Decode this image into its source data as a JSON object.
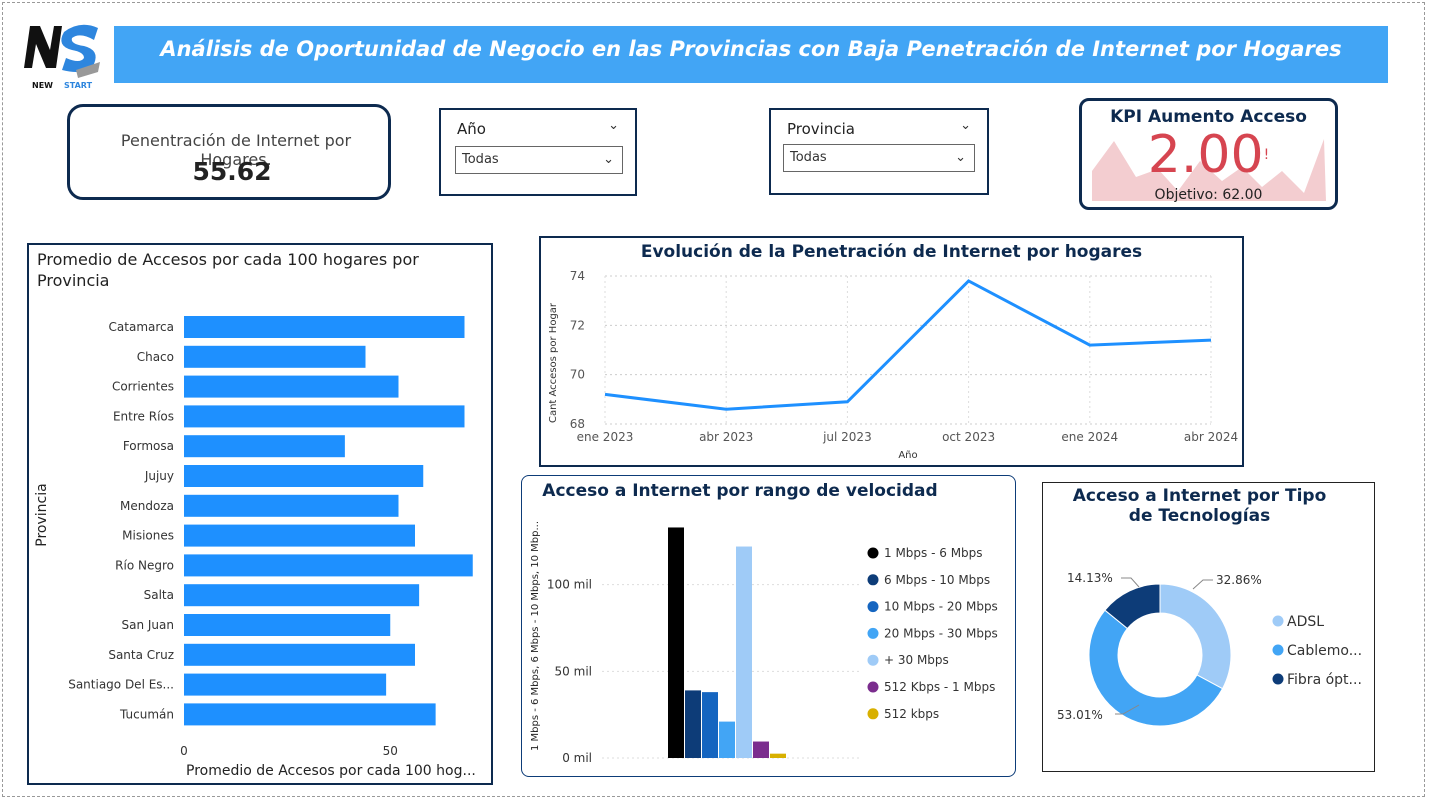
{
  "header": {
    "title": "Análisis de Oportunidad de Negocio en las Provincias con Baja Penetración de Internet por Hogares",
    "logo_text": "NS",
    "logo_sub_a": "NEW",
    "logo_sub_b": "START"
  },
  "kpi_card": {
    "label": "Penentración de Internet por Hogares.",
    "value": "55.62"
  },
  "slicers": {
    "year": {
      "label": "Año",
      "selected": "Todas"
    },
    "province": {
      "label": "Provincia",
      "selected": "Todas"
    }
  },
  "kpi_growth": {
    "title": "KPI Aumento Acceso",
    "value": "2.00",
    "alert": "!",
    "target": "Objetivo: 62.00"
  },
  "colors": {
    "bar_blue": "#1e90ff",
    "dark_navy": "#0d2a4f",
    "kpi_red": "#d64550",
    "line_blue": "#1e90ff"
  },
  "chart_data": [
    {
      "type": "bar",
      "title": "Promedio de Accesos por cada 100 hogares por Provincia",
      "xlabel": "Promedio de Accesos por cada 100 hog...",
      "ylabel": "Provincia",
      "orientation": "horizontal",
      "categories": [
        "Catamarca",
        "Chaco",
        "Corrientes",
        "Entre Ríos",
        "Formosa",
        "Jujuy",
        "Mendoza",
        "Misiones",
        "Río Negro",
        "Salta",
        "San Juan",
        "Santa Cruz",
        "Santiago Del Es...",
        "Tucumán"
      ],
      "values": [
        68,
        44,
        52,
        68,
        39,
        58,
        52,
        56,
        70,
        57,
        50,
        56,
        49,
        61
      ],
      "xlim": [
        0,
        72
      ],
      "xticks": [
        "0",
        "50"
      ],
      "xtick_values": [
        0,
        50
      ]
    },
    {
      "type": "line",
      "title": "Evolución de la Penetración de Internet por hogares",
      "xlabel": "Año",
      "ylabel": "Cant Accesos por Hogar",
      "x": [
        "ene 2023",
        "abr 2023",
        "jul 2023",
        "oct 2023",
        "ene 2024",
        "abr 2024"
      ],
      "y": [
        69.2,
        68.6,
        68.9,
        73.8,
        71.2,
        71.4
      ],
      "ylim": [
        68,
        74
      ],
      "yticks": [
        "68",
        "70",
        "72",
        "74"
      ],
      "grid": true
    },
    {
      "type": "bar",
      "title": "Acceso a Internet por rango de velocidad",
      "ylabel": "1 Mbps - 6 Mbps, 6 Mbps - 10 Mbps, 10 Mbp...",
      "yticks": [
        "0 mil",
        "50 mil",
        "100 mil"
      ],
      "ylim": [
        0,
        135000
      ],
      "series": [
        {
          "name": "1 Mbps - 6 Mbps",
          "value": 133000,
          "color": "#000000"
        },
        {
          "name": "6 Mbps - 10 Mbps",
          "value": 39000,
          "color": "#0d3c78"
        },
        {
          "name": "10 Mbps - 20 Mbps",
          "value": 38000,
          "color": "#1565c0"
        },
        {
          "name": "20 Mbps - 30 Mbps",
          "value": 21000,
          "color": "#42a5f5"
        },
        {
          "name": "+ 30 Mbps",
          "value": 122000,
          "color": "#9fcbf7"
        },
        {
          "name": "512 Kbps - 1 Mbps",
          "value": 9500,
          "color": "#7b2d8e"
        },
        {
          "name": "512 kbps",
          "value": 2500,
          "color": "#d8b000"
        }
      ],
      "legend": "right"
    },
    {
      "type": "pie",
      "title": "Acceso a Internet por Tipo de Tecnologías",
      "labels": [
        "ADSL",
        "Cablemo...",
        "Fibra ópt..."
      ],
      "values": [
        32.86,
        53.01,
        14.13
      ],
      "value_labels": [
        "32.86%",
        "53.01%",
        "14.13%"
      ],
      "colors": [
        "#9fcbf7",
        "#42a5f5",
        "#0d3c78"
      ],
      "legend": "right"
    }
  ]
}
